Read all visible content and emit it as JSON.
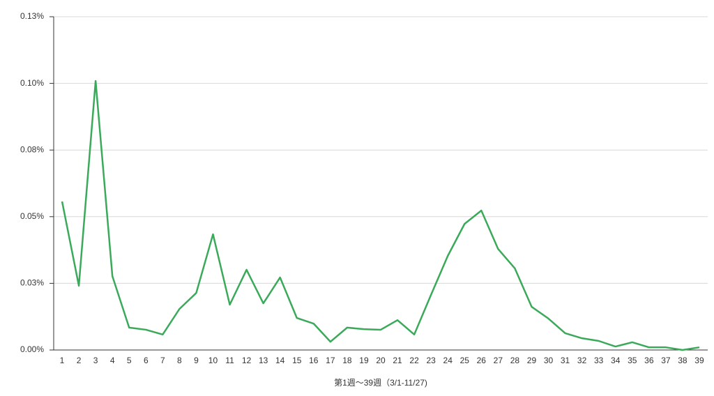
{
  "chart_data": {
    "type": "line",
    "x_label": "第1週〜39週（3/1-11/27)",
    "categories": [
      "1",
      "2",
      "3",
      "4",
      "5",
      "6",
      "7",
      "8",
      "9",
      "10",
      "11",
      "12",
      "13",
      "14",
      "15",
      "16",
      "17",
      "18",
      "19",
      "20",
      "21",
      "22",
      "23",
      "24",
      "25",
      "26",
      "27",
      "28",
      "29",
      "30",
      "31",
      "32",
      "33",
      "34",
      "35",
      "36",
      "37",
      "38",
      "39"
    ],
    "series": [
      {
        "color": "#3aaa5a",
        "values": [
          0.0557,
          0.0241,
          0.1009,
          0.0277,
          0.0084,
          0.0076,
          0.0058,
          0.0154,
          0.0214,
          0.0434,
          0.017,
          0.0301,
          0.0175,
          0.0272,
          0.012,
          0.0099,
          0.0031,
          0.0084,
          0.0078,
          0.0076,
          0.0112,
          0.0058,
          0.0207,
          0.0353,
          0.0473,
          0.0523,
          0.0379,
          0.0306,
          0.0162,
          0.0118,
          0.0063,
          0.0044,
          0.0034,
          0.0013,
          0.0029,
          0.001,
          0.001,
          0.0,
          0.001
        ]
      }
    ],
    "ylim": [
      0,
      0.125
    ],
    "yticks": [
      {
        "value": 0,
        "label": "0.00%"
      },
      {
        "value": 0.025,
        "label": "0.03%"
      },
      {
        "value": 0.05,
        "label": "0.05%"
      },
      {
        "value": 0.075,
        "label": "0.08%"
      },
      {
        "value": 0.1,
        "label": "0.10%"
      },
      {
        "value": 0.125,
        "label": "0.13%"
      }
    ],
    "grid": true
  }
}
